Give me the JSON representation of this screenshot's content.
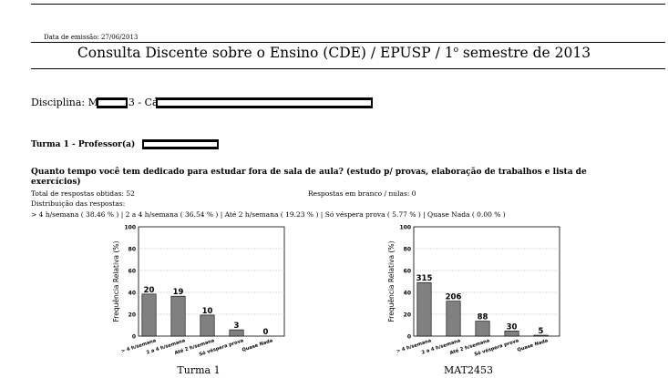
{
  "header": {
    "emission_date": "Data de emissão: 27/06/2013",
    "title_main": "Consulta Discente sobre o Ensino (CDE) / EPUSP / 1",
    "title_sup": "o",
    "title_tail": " semestre de 2013"
  },
  "disciplina": {
    "label": "Disciplina: M",
    "mid": "3 - Cá"
  },
  "turma": {
    "label": "Turma 1 - Professor(a)"
  },
  "question": {
    "text": "Quanto tempo você tem dedicado para estudar fora de sala de aula? (estudo p/ provas, elaboração de trabalhos e lista de exercícios)",
    "total": "Total de respostas obtidas: 52",
    "blank": "Respostas em branco / nulas: 0",
    "distribution_label": "Distribuição das respostas:",
    "distribution": "> 4 h/semana ( 38.46 % )  |  2 a 4 h/semana ( 36.54 % )  |  Até 2 h/semana ( 19.23 % )  |  Só véspera prova ( 5.77 % )  |  Quase Nada ( 0.00 % )"
  },
  "chart_data": [
    {
      "type": "bar",
      "title": "Turma 1",
      "ylabel": "Frequência Relativa (%)",
      "xlabel": "",
      "ylim": [
        0,
        100
      ],
      "yticks": [
        "0",
        "20",
        "40",
        "60",
        "80",
        "100"
      ],
      "grid": true,
      "categories": [
        "> 4 h/semana",
        "2 a 4 h/semana",
        "Até 2 h/semana",
        "Só véspera prova",
        "Quase Nada"
      ],
      "values": [
        38.46,
        36.54,
        19.23,
        5.77,
        0.0
      ],
      "data_labels": [
        "20",
        "19",
        "10",
        "3",
        "0"
      ],
      "bar_color": "#808080"
    },
    {
      "type": "bar",
      "title": "MAT2453",
      "ylabel": "Frequência Relativa (%)",
      "xlabel": "",
      "ylim": [
        0,
        100
      ],
      "yticks": [
        "0",
        "20",
        "40",
        "60",
        "80",
        "100"
      ],
      "grid": true,
      "categories": [
        "> 4 h/semana",
        "2 a 4 h/semana",
        "Até 2 h/semana",
        "Só véspera prova",
        "Quase Nada"
      ],
      "values": [
        49.0,
        32.0,
        13.7,
        4.7,
        0.8
      ],
      "data_labels": [
        "315",
        "206",
        "88",
        "30",
        "5"
      ],
      "bar_color": "#808080"
    }
  ]
}
